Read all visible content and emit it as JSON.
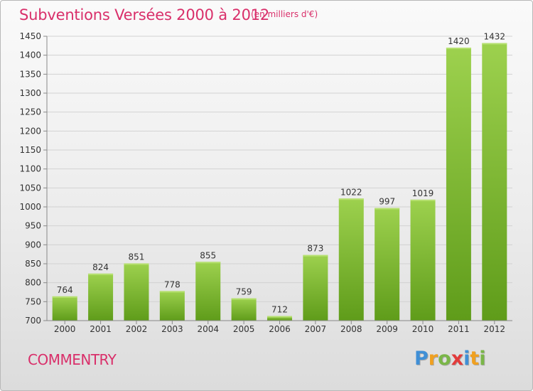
{
  "header": {
    "title": "Subventions Versées 2000 à 2012",
    "subtitle": "(en milliers d'€)"
  },
  "footer": {
    "commune": "COMMENTRY",
    "brand_letters": [
      {
        "char": "P",
        "color": "#3f8fd6"
      },
      {
        "char": "r",
        "color": "#f0a020"
      },
      {
        "char": "o",
        "color": "#7ab648"
      },
      {
        "char": "x",
        "color": "#e23b3b"
      },
      {
        "char": "i",
        "color": "#3f8fd6"
      },
      {
        "char": "t",
        "color": "#f0a020"
      },
      {
        "char": "i",
        "color": "#7ab648"
      }
    ]
  },
  "chart_data": {
    "type": "bar",
    "title": "Subventions Versées 2000 à 2012",
    "subtitle": "(en milliers d'€)",
    "categories": [
      "2000",
      "2001",
      "2002",
      "2003",
      "2004",
      "2005",
      "2006",
      "2007",
      "2008",
      "2009",
      "2010",
      "2011",
      "2012"
    ],
    "values": [
      764,
      824,
      851,
      778,
      855,
      759,
      712,
      873,
      1022,
      997,
      1019,
      1420,
      1432
    ],
    "ylim": [
      700,
      1450
    ],
    "yticks": [
      700,
      750,
      800,
      850,
      900,
      950,
      1000,
      1050,
      1100,
      1150,
      1200,
      1250,
      1300,
      1350,
      1400,
      1450
    ],
    "grid": true,
    "bar_color": "#7dbb2e",
    "accent_color": "#d92f6a"
  }
}
